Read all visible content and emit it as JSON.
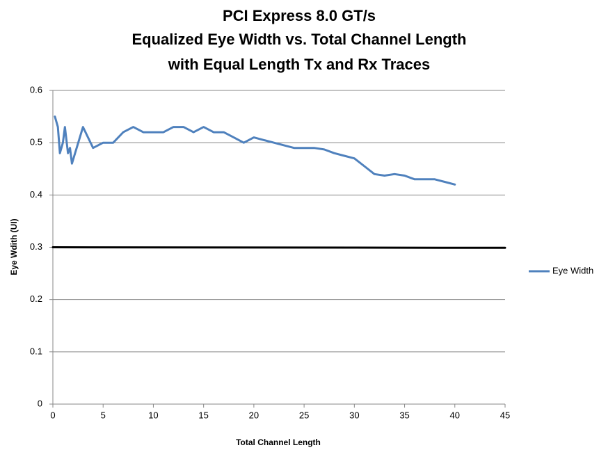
{
  "chart_data": {
    "type": "line",
    "title": [
      "PCI Express 8.0 GT/s",
      "Equalized Eye Width vs. Total Channel Length",
      "with Equal Length Tx and Rx Traces"
    ],
    "x_label": "Total Channel Length",
    "y_label": "Eye Wdith (UI)",
    "xlim": [
      0,
      45
    ],
    "xticks": [
      0,
      5,
      10,
      15,
      20,
      25,
      30,
      35,
      40,
      45
    ],
    "ylim": [
      0,
      0.6
    ],
    "yticks": [
      0,
      0.1,
      0.2,
      0.3,
      0.4,
      0.5,
      0.6
    ],
    "grid": true,
    "legend": "right",
    "series": [
      {
        "name": "Eye Width",
        "color": "#4f81bd",
        "x": [
          0.2,
          0.5,
          0.7,
          1.0,
          1.2,
          1.5,
          1.7,
          1.9,
          3,
          4,
          5,
          6,
          7,
          8,
          9,
          10,
          11,
          12,
          13,
          14,
          15,
          16,
          17,
          18,
          19,
          20,
          21,
          22,
          23,
          24,
          25,
          26,
          27,
          28,
          29,
          30,
          31,
          32,
          33,
          34,
          35,
          36,
          37,
          38,
          39,
          40
        ],
        "values": [
          0.55,
          0.53,
          0.48,
          0.5,
          0.53,
          0.48,
          0.49,
          0.46,
          0.53,
          0.49,
          0.5,
          0.5,
          0.52,
          0.53,
          0.52,
          0.52,
          0.52,
          0.53,
          0.53,
          0.52,
          0.53,
          0.52,
          0.52,
          0.51,
          0.5,
          0.51,
          0.505,
          0.5,
          0.495,
          0.49,
          0.49,
          0.49,
          0.487,
          0.48,
          0.475,
          0.47,
          0.455,
          0.44,
          0.437,
          0.44,
          0.437,
          0.43,
          0.43,
          0.43,
          0.425,
          0.42
        ]
      }
    ],
    "limit_line": {
      "x": [
        0,
        45
      ],
      "values": [
        0.3,
        0.299
      ],
      "color": "#000000"
    }
  }
}
